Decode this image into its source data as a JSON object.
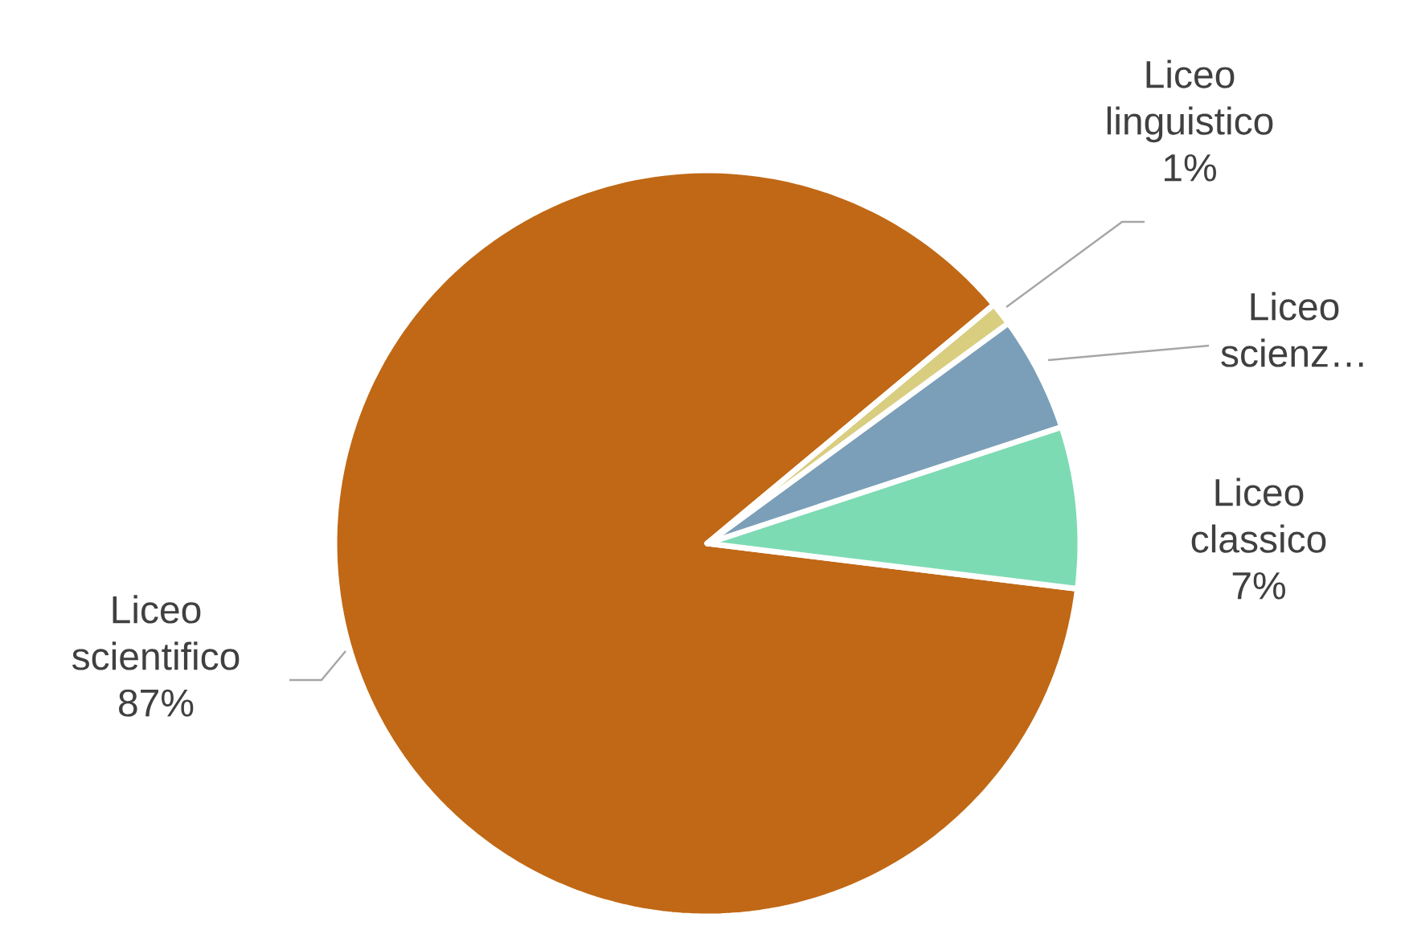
{
  "chart_data": {
    "type": "pie",
    "categories": [
      "Liceo scientifico",
      "Liceo classico",
      "Liceo scienz…",
      "Liceo linguistico"
    ],
    "values": [
      87,
      7,
      5,
      1
    ],
    "value_labels": [
      "87%",
      "7%",
      null,
      "1%"
    ],
    "colors": [
      "#c06815",
      "#7ddbb4",
      "#7b9fb8",
      "#d9cd80"
    ],
    "legend": false
  }
}
